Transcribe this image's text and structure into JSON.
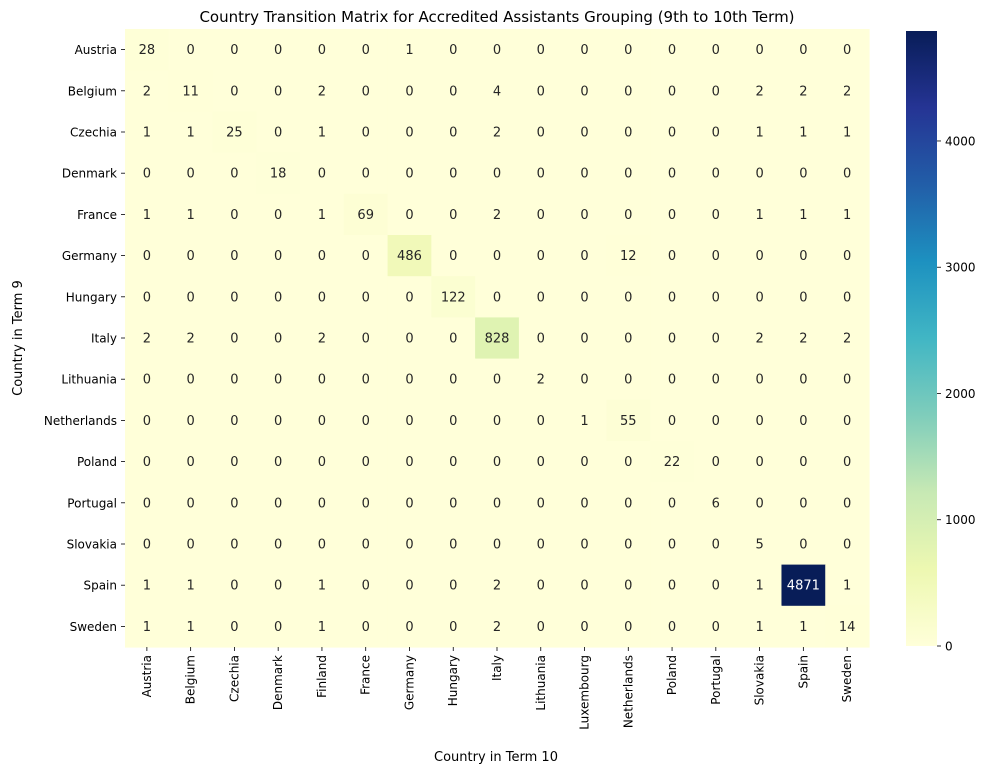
{
  "chart_data": {
    "type": "heatmap",
    "title": "Country Transition Matrix for Accredited Assistants Grouping (9th to 10th Term)",
    "xlabel": "Country in Term 10",
    "ylabel": "Country in Term 9",
    "x_categories": [
      "Austria",
      "Belgium",
      "Czechia",
      "Denmark",
      "Finland",
      "France",
      "Germany",
      "Hungary",
      "Italy",
      "Lithuania",
      "Luxembourg",
      "Netherlands",
      "Poland",
      "Portugal",
      "Slovakia",
      "Spain",
      "Sweden"
    ],
    "y_categories": [
      "Austria",
      "Belgium",
      "Czechia",
      "Denmark",
      "France",
      "Germany",
      "Hungary",
      "Italy",
      "Lithuania",
      "Netherlands",
      "Poland",
      "Portugal",
      "Slovakia",
      "Spain",
      "Sweden"
    ],
    "values": [
      [
        28,
        0,
        0,
        0,
        0,
        0,
        1,
        0,
        0,
        0,
        0,
        0,
        0,
        0,
        0,
        0,
        0
      ],
      [
        2,
        11,
        0,
        0,
        2,
        0,
        0,
        0,
        4,
        0,
        0,
        0,
        0,
        0,
        2,
        2,
        2
      ],
      [
        1,
        1,
        25,
        0,
        1,
        0,
        0,
        0,
        2,
        0,
        0,
        0,
        0,
        0,
        1,
        1,
        1
      ],
      [
        0,
        0,
        0,
        18,
        0,
        0,
        0,
        0,
        0,
        0,
        0,
        0,
        0,
        0,
        0,
        0,
        0
      ],
      [
        1,
        1,
        0,
        0,
        1,
        69,
        0,
        0,
        2,
        0,
        0,
        0,
        0,
        0,
        1,
        1,
        1
      ],
      [
        0,
        0,
        0,
        0,
        0,
        0,
        486,
        0,
        0,
        0,
        0,
        12,
        0,
        0,
        0,
        0,
        0
      ],
      [
        0,
        0,
        0,
        0,
        0,
        0,
        0,
        122,
        0,
        0,
        0,
        0,
        0,
        0,
        0,
        0,
        0
      ],
      [
        2,
        2,
        0,
        0,
        2,
        0,
        0,
        0,
        828,
        0,
        0,
        0,
        0,
        0,
        2,
        2,
        2
      ],
      [
        0,
        0,
        0,
        0,
        0,
        0,
        0,
        0,
        0,
        2,
        0,
        0,
        0,
        0,
        0,
        0,
        0
      ],
      [
        0,
        0,
        0,
        0,
        0,
        0,
        0,
        0,
        0,
        0,
        1,
        55,
        0,
        0,
        0,
        0,
        0
      ],
      [
        0,
        0,
        0,
        0,
        0,
        0,
        0,
        0,
        0,
        0,
        0,
        0,
        22,
        0,
        0,
        0,
        0
      ],
      [
        0,
        0,
        0,
        0,
        0,
        0,
        0,
        0,
        0,
        0,
        0,
        0,
        0,
        6,
        0,
        0,
        0
      ],
      [
        0,
        0,
        0,
        0,
        0,
        0,
        0,
        0,
        0,
        0,
        0,
        0,
        0,
        0,
        5,
        0,
        0
      ],
      [
        1,
        1,
        0,
        0,
        1,
        0,
        0,
        0,
        2,
        0,
        0,
        0,
        0,
        0,
        1,
        4871,
        1
      ],
      [
        1,
        1,
        0,
        0,
        1,
        0,
        0,
        0,
        2,
        0,
        0,
        0,
        0,
        0,
        1,
        1,
        14
      ]
    ],
    "colormap": "YlGnBu",
    "colorbar": {
      "range": [
        0,
        4871
      ],
      "ticks": [
        0,
        1000,
        2000,
        3000,
        4000
      ]
    },
    "annotations": true,
    "grid": false,
    "legend": "colorbar-right"
  }
}
